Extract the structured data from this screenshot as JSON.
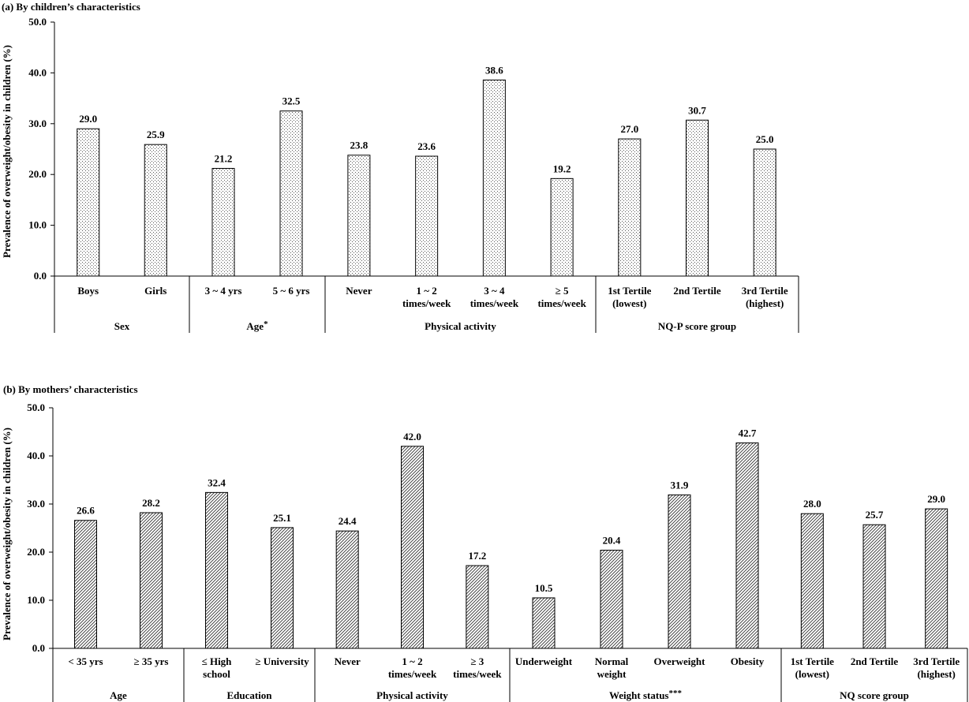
{
  "chart_data": [
    {
      "type": "bar",
      "title": "(a) By children’s characteristics",
      "ylabel": "Prevalence of overweight/obesity in children (%)",
      "ylim": [
        0,
        50
      ],
      "yticks": [
        "0.0",
        "10.0",
        "20.0",
        "30.0",
        "40.0",
        "50.0"
      ],
      "bar_pattern": "dots",
      "grid": false,
      "groups": [
        {
          "label": "Sex",
          "mark": "",
          "categories": [
            [
              "Boys"
            ],
            [
              "Girls"
            ]
          ],
          "values": [
            29.0,
            25.9
          ]
        },
        {
          "label": "Age",
          "mark": "*",
          "categories": [
            [
              "3 ~ 4 yrs"
            ],
            [
              "5 ~ 6 yrs"
            ]
          ],
          "values": [
            21.2,
            32.5
          ]
        },
        {
          "label": "Physical activity",
          "mark": "",
          "categories": [
            [
              "Never"
            ],
            [
              "1 ~ 2",
              "times/week"
            ],
            [
              "3 ~ 4",
              "times/week"
            ],
            [
              "≥ 5",
              "times/week"
            ]
          ],
          "values": [
            23.8,
            23.6,
            38.6,
            19.2
          ]
        },
        {
          "label": "NQ-P score group",
          "mark": "",
          "categories": [
            [
              "1st Tertile",
              "(lowest)"
            ],
            [
              "2nd Tertile"
            ],
            [
              "3rd Tertile",
              "(highest)"
            ]
          ],
          "values": [
            27.0,
            30.7,
            25.0
          ]
        }
      ]
    },
    {
      "type": "bar",
      "title": "(b) By mothers’ characteristics",
      "ylabel": "Prevalence of overweight/obesity in children (%)",
      "ylim": [
        0,
        50
      ],
      "yticks": [
        "0.0",
        "10.0",
        "20.0",
        "30.0",
        "40.0",
        "50.0"
      ],
      "bar_pattern": "diagonal-hatch",
      "grid": false,
      "groups": [
        {
          "label": "Age",
          "mark": "",
          "categories": [
            [
              "< 35 yrs"
            ],
            [
              "≥ 35 yrs"
            ]
          ],
          "values": [
            26.6,
            28.2
          ]
        },
        {
          "label": "Education",
          "mark": "",
          "categories": [
            [
              "≤ High",
              "school"
            ],
            [
              "≥ University"
            ]
          ],
          "values": [
            32.4,
            25.1
          ]
        },
        {
          "label": "Physical activity",
          "mark": "",
          "categories": [
            [
              "Never"
            ],
            [
              "1 ~ 2",
              "times/week"
            ],
            [
              "≥ 3",
              "times/week"
            ]
          ],
          "values": [
            24.4,
            42.0,
            17.2
          ]
        },
        {
          "label": "Weight status",
          "mark": "***",
          "categories": [
            [
              "Underweight"
            ],
            [
              "Normal",
              "weight"
            ],
            [
              "Overweight"
            ],
            [
              "Obesity"
            ]
          ],
          "values": [
            10.5,
            20.4,
            31.9,
            42.7
          ]
        },
        {
          "label": "NQ score group",
          "mark": "",
          "categories": [
            [
              "1st Tertile",
              "(lowest)"
            ],
            [
              "2nd Tertile"
            ],
            [
              "3rd Tertile",
              "(highest)"
            ]
          ],
          "values": [
            28.0,
            25.7,
            29.0
          ]
        }
      ]
    }
  ]
}
